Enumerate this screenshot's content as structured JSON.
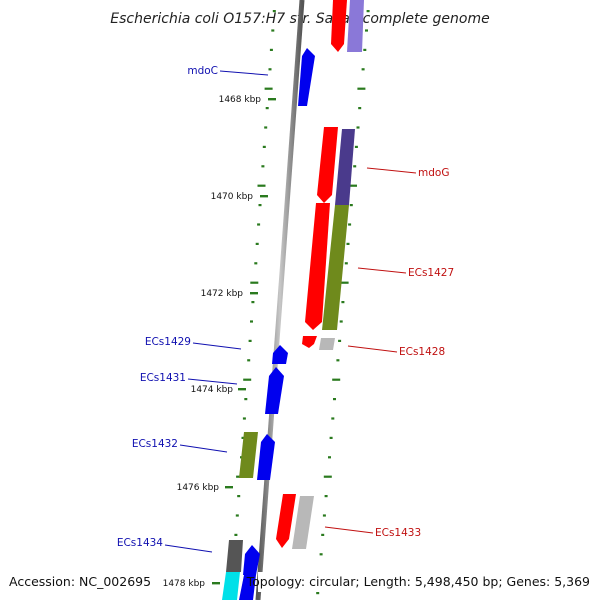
{
  "title": "Escherichia coli O157:H7 str. Sakai, complete genome",
  "footer": {
    "accession": "Accession: NC_002695",
    "summary": "Topology: circular; Length: 5,498,450 bp; Genes: 5,369"
  },
  "colors": {
    "axis": "#7a7a7a",
    "tick": "#2a7a1e",
    "left_strand_label": "#1010b0",
    "right_strand_label": "#c01010",
    "red": "#ff0000",
    "blue": "#0000ee",
    "olive": "#6f8a1c",
    "navy": "#4a3a8c",
    "lavender": "#8a78d8",
    "gray": "#b8b8b8",
    "dark_gray": "#555555",
    "cyan": "#00e0e8"
  },
  "kbp_marks": [
    {
      "label": "1468 kbp"
    },
    {
      "label": "1470 kbp"
    },
    {
      "label": "1472 kbp"
    },
    {
      "label": "1474 kbp"
    },
    {
      "label": "1476 kbp"
    },
    {
      "label": "1478 kbp"
    }
  ],
  "gene_labels": [
    {
      "label": "mdoC",
      "side": "left"
    },
    {
      "label": "mdoG",
      "side": "right"
    },
    {
      "label": "ECs1427",
      "side": "right"
    },
    {
      "label": "ECs1428",
      "side": "right"
    },
    {
      "label": "ECs1429",
      "side": "left"
    },
    {
      "label": "ECs1431",
      "side": "left"
    },
    {
      "label": "ECs1432",
      "side": "left"
    },
    {
      "label": "ECs1433",
      "side": "right"
    },
    {
      "label": "ECs1434",
      "side": "left"
    }
  ]
}
